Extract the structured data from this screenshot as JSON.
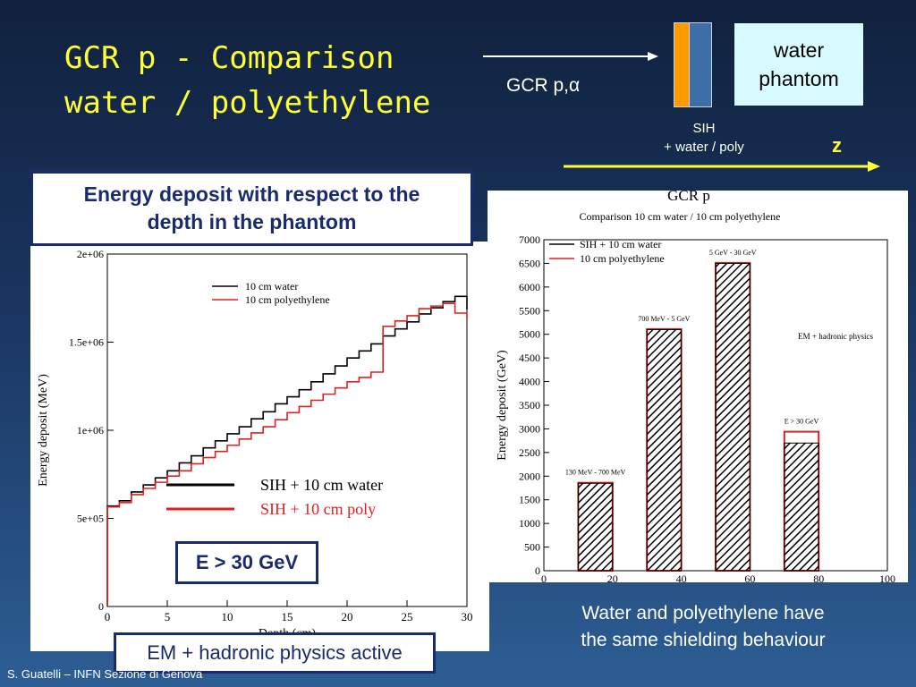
{
  "title": {
    "line1": "GCR p - Comparison",
    "line2": "water / polyethylene"
  },
  "schematic": {
    "beam_label": "GCR p,α",
    "phantom_label_line1": "water",
    "phantom_label_line2": "phantom",
    "sih_label_line1": "SIH",
    "sih_label_line2": "+  water / poly",
    "z_label": "z",
    "colors": {
      "sih_slab": "#ff9900",
      "phantom_slab": "#3d6ea8",
      "phantom_box": "#d8fbff",
      "arrow": "#ffff33"
    }
  },
  "callouts": {
    "energy_line1": "Energy deposit  with respect to the",
    "energy_line2": "depth in the phantom",
    "energy_gev": "E > 30 GeV",
    "em_hadronic": "EM + hadronic physics active",
    "conclusion_line1": "Water and polyethylene have",
    "conclusion_line2": "the same shielding behaviour"
  },
  "footer": "S. Guatelli – INFN Sezione di Genova",
  "chart_data": [
    {
      "type": "line",
      "xlabel": "Depth (cm)",
      "ylabel": "Energy deposit (MeV)",
      "xlim": [
        0,
        30
      ],
      "ylim": [
        0,
        2000000
      ],
      "x_ticks": [
        "0",
        "5",
        "10",
        "15",
        "20",
        "25",
        "30"
      ],
      "y_ticks": [
        "0",
        "5e+05",
        "1e+06",
        "1.5e+06",
        "2e+06"
      ],
      "legend_placement": "top-right",
      "series": [
        {
          "name": "10 cm water",
          "color": "#000000",
          "x": [
            0,
            1,
            2,
            3,
            4,
            5,
            6,
            7,
            8,
            9,
            10,
            11,
            12,
            13,
            14,
            15,
            16,
            17,
            18,
            19,
            20,
            21,
            22,
            23,
            24,
            25,
            26,
            27,
            28,
            29,
            30
          ],
          "values": [
            570000,
            600000,
            650000,
            690000,
            730000,
            770000,
            815000,
            855000,
            900000,
            940000,
            980000,
            1020000,
            1065000,
            1105000,
            1150000,
            1190000,
            1230000,
            1275000,
            1320000,
            1365000,
            1410000,
            1450000,
            1490000,
            1535000,
            1575000,
            1615000,
            1660000,
            1695000,
            1730000,
            1760000,
            1685000
          ]
        },
        {
          "name": "10 cm polyethylene",
          "color": "#e02020",
          "x": [
            0,
            1,
            2,
            3,
            4,
            5,
            6,
            7,
            8,
            9,
            10,
            11,
            12,
            13,
            14,
            15,
            16,
            17,
            18,
            19,
            20,
            21,
            22,
            23,
            24,
            25,
            26,
            27,
            28,
            29,
            30
          ],
          "values": [
            565000,
            590000,
            635000,
            670000,
            705000,
            740000,
            770000,
            810000,
            845000,
            880000,
            915000,
            950000,
            985000,
            1020000,
            1060000,
            1100000,
            1135000,
            1170000,
            1205000,
            1240000,
            1275000,
            1300000,
            1330000,
            1590000,
            1620000,
            1650000,
            1690000,
            1705000,
            1720000,
            1665000,
            1630000
          ]
        }
      ],
      "annotations": [
        {
          "label": "SIH + 10 cm water",
          "color": "#000000"
        },
        {
          "label": "SIH + 10 cm poly",
          "color": "#e02020"
        }
      ]
    },
    {
      "type": "bar",
      "title": "GCR p",
      "subtitle": "Comparison 10 cm water / 10 cm polyethylene",
      "ylabel": "Energy deposit (GeV)",
      "xlim": [
        0,
        100
      ],
      "ylim": [
        0,
        7000
      ],
      "x_ticks": [
        "0",
        "20",
        "40",
        "60",
        "80",
        "100"
      ],
      "y_ticks": [
        "0",
        "500",
        "1000",
        "1500",
        "2000",
        "2500",
        "3000",
        "3500",
        "4000",
        "4500",
        "5000",
        "5500",
        "6000",
        "6500",
        "7000"
      ],
      "legend_placement": "top-left",
      "categories": [
        "130 MeV - 700 MeV",
        "700 MeV - 5 GeV",
        "5 GeV - 30 GeV",
        "E > 30 GeV"
      ],
      "x_centers": [
        15,
        35,
        55,
        75
      ],
      "series": [
        {
          "name": "SIH + 10 cm water",
          "color": "#000000",
          "values": [
            1850,
            5100,
            6500,
            2700
          ]
        },
        {
          "name": "10 cm polyethylene",
          "color": "#e02020",
          "values": [
            1860,
            5110,
            6510,
            2940
          ]
        }
      ],
      "annotations": [
        {
          "label": "EM + hadronic physics"
        }
      ]
    }
  ]
}
